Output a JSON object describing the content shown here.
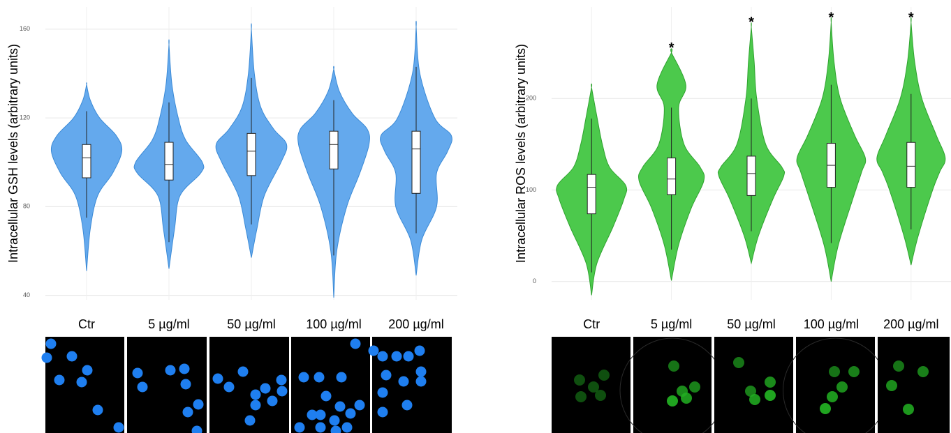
{
  "chart_data": [
    {
      "type": "violin",
      "y_label": "Intracellular GSH levels (arbitrary units)",
      "color": "#64a9ed",
      "edge_color": "#3b8ad6",
      "ylim": [
        38,
        170
      ],
      "yticks": [
        40,
        80,
        120,
        160
      ],
      "grid": true,
      "categories": [
        "Ctr",
        "5 µg/ml",
        "50 µg/ml",
        "100 µg/ml",
        "200 µg/ml"
      ],
      "groups": [
        {
          "min": 75,
          "q1": 93,
          "median": 102,
          "q3": 108,
          "max": 123,
          "violin_y": [
            51,
            70,
            85,
            95,
            105,
            112,
            120,
            128,
            135
          ],
          "violin_width": [
            0,
            0.1,
            0.3,
            0.7,
            0.95,
            0.8,
            0.35,
            0.1,
            0
          ]
        },
        {
          "min": 64,
          "q1": 92,
          "median": 99,
          "q3": 109,
          "max": 127,
          "violin_y": [
            52,
            70,
            85,
            95,
            100,
            110,
            120,
            135,
            153
          ],
          "violin_width": [
            0,
            0.15,
            0.3,
            0.85,
            0.9,
            0.45,
            0.25,
            0.08,
            0
          ]
        },
        {
          "min": 72,
          "q1": 94,
          "median": 105,
          "q3": 113,
          "max": 138,
          "violin_y": [
            57,
            70,
            85,
            100,
            108,
            115,
            125,
            140,
            160
          ],
          "violin_width": [
            0,
            0.15,
            0.35,
            0.8,
            0.95,
            0.6,
            0.25,
            0.08,
            0
          ]
        },
        {
          "min": 58,
          "q1": 97,
          "median": 108,
          "q3": 114,
          "max": 128,
          "violin_y": [
            39,
            60,
            80,
            95,
            108,
            115,
            122,
            132,
            142
          ],
          "violin_width": [
            0,
            0.08,
            0.35,
            0.7,
            0.95,
            0.9,
            0.5,
            0.15,
            0
          ]
        },
        {
          "min": 68,
          "q1": 86,
          "median": 106,
          "q3": 114,
          "max": 143,
          "violin_y": [
            49,
            65,
            80,
            95,
            105,
            112,
            120,
            140,
            161
          ],
          "violin_width": [
            0,
            0.15,
            0.55,
            0.55,
            0.85,
            0.95,
            0.5,
            0.1,
            0
          ]
        }
      ]
    },
    {
      "type": "violin",
      "y_label": "Intracellular ROS levels (arbitrary units)",
      "color": "#4cc94c",
      "edge_color": "#2fa32f",
      "ylim": [
        -20,
        300
      ],
      "yticks": [
        0,
        100,
        200
      ],
      "grid": true,
      "categories": [
        "Ctr",
        "5 µg/ml",
        "50 µg/ml",
        "100 µg/ml",
        "200 µg/ml"
      ],
      "significance": [
        null,
        "*",
        "*",
        "*",
        "*"
      ],
      "groups": [
        {
          "min": 10,
          "q1": 74,
          "median": 103,
          "q3": 117,
          "max": 178,
          "violin_y": [
            -15,
            20,
            60,
            90,
            105,
            125,
            150,
            180,
            212
          ],
          "violin_width": [
            0,
            0.15,
            0.6,
            0.9,
            0.95,
            0.5,
            0.3,
            0.15,
            0
          ]
        },
        {
          "min": 35,
          "q1": 95,
          "median": 112,
          "q3": 135,
          "max": 190,
          "violin_y": [
            1,
            40,
            80,
            110,
            125,
            150,
            190,
            215,
            250
          ],
          "violin_width": [
            0,
            0.2,
            0.55,
            0.9,
            0.8,
            0.35,
            0.2,
            0.4,
            0
          ]
        },
        {
          "min": 55,
          "q1": 94,
          "median": 118,
          "q3": 137,
          "max": 200,
          "violin_y": [
            20,
            50,
            90,
            115,
            125,
            150,
            200,
            240,
            278
          ],
          "violin_width": [
            0,
            0.2,
            0.6,
            0.9,
            0.85,
            0.4,
            0.15,
            0.08,
            0
          ]
        },
        {
          "min": 42,
          "q1": 103,
          "median": 127,
          "q3": 151,
          "max": 215,
          "violin_y": [
            0,
            40,
            90,
            120,
            135,
            160,
            200,
            240,
            283
          ],
          "violin_width": [
            0,
            0.2,
            0.6,
            0.85,
            0.95,
            0.65,
            0.25,
            0.08,
            0
          ]
        },
        {
          "min": 57,
          "q1": 103,
          "median": 126,
          "q3": 152,
          "max": 205,
          "violin_y": [
            18,
            50,
            100,
            120,
            135,
            160,
            200,
            240,
            283
          ],
          "violin_width": [
            0,
            0.2,
            0.6,
            0.8,
            0.95,
            0.7,
            0.3,
            0.1,
            0
          ]
        }
      ]
    }
  ]
}
